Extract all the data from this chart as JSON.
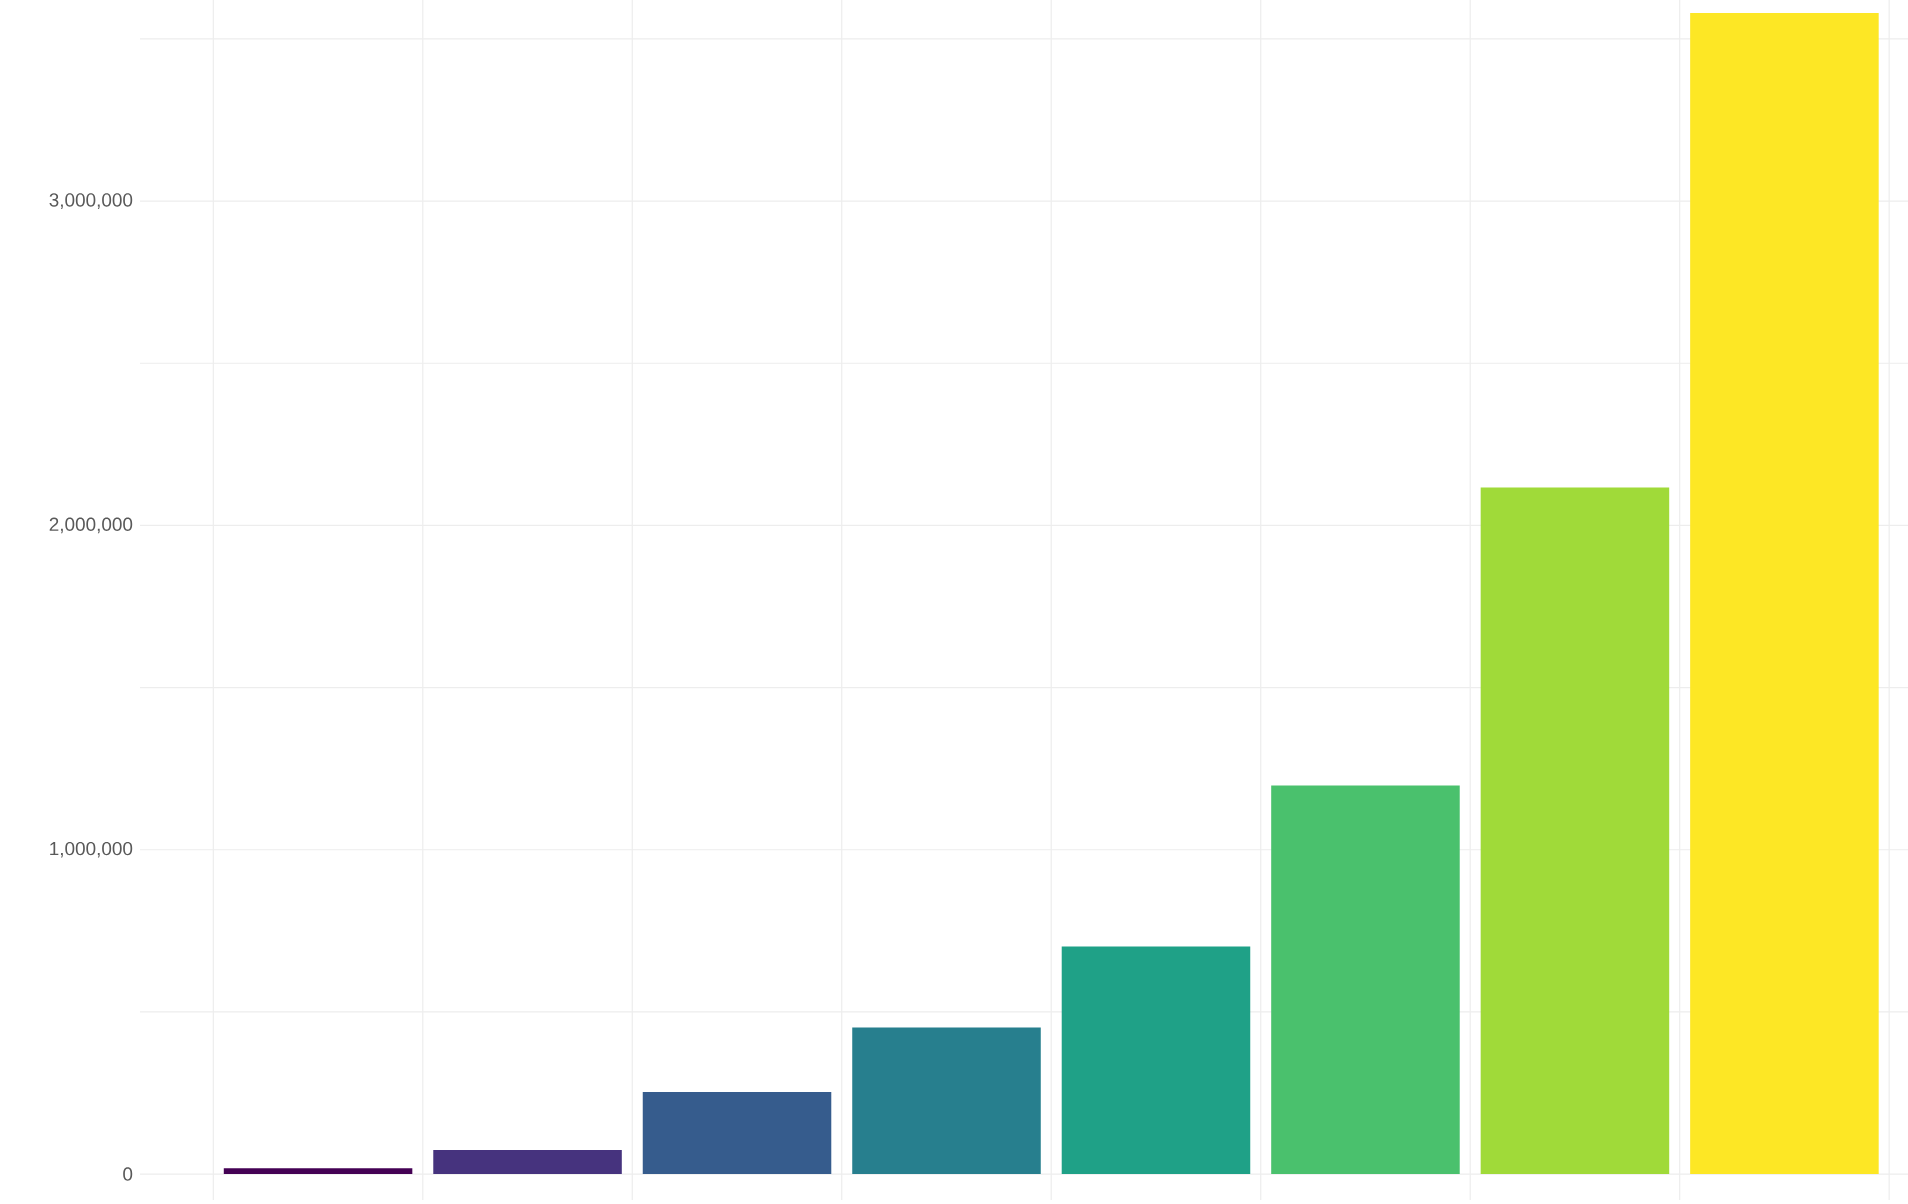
{
  "chart_data": {
    "type": "bar",
    "categories": [
      null,
      null,
      null,
      null,
      null,
      null,
      null,
      null
    ],
    "values": [
      18000,
      74000,
      253000,
      452000,
      702000,
      1198000,
      2117000,
      3580000
    ],
    "colors": [
      "#440154",
      "#46337e",
      "#365c8d",
      "#277f8e",
      "#1fa187",
      "#4ac16d",
      "#a0da39",
      "#fde725"
    ],
    "ylim": [
      -80000,
      3620000
    ],
    "yticks": [
      {
        "value": 0,
        "label": "0"
      },
      {
        "value": 500000,
        "label": null
      },
      {
        "value": 1000000,
        "label": "1,000,000"
      },
      {
        "value": 1500000,
        "label": null
      },
      {
        "value": 2000000,
        "label": "2,000,000"
      },
      {
        "value": 2500000,
        "label": null
      },
      {
        "value": 3000000,
        "label": "3,000,000"
      },
      {
        "value": 3500000,
        "label": null
      }
    ],
    "grid": true,
    "tick_labels": "y"
  }
}
